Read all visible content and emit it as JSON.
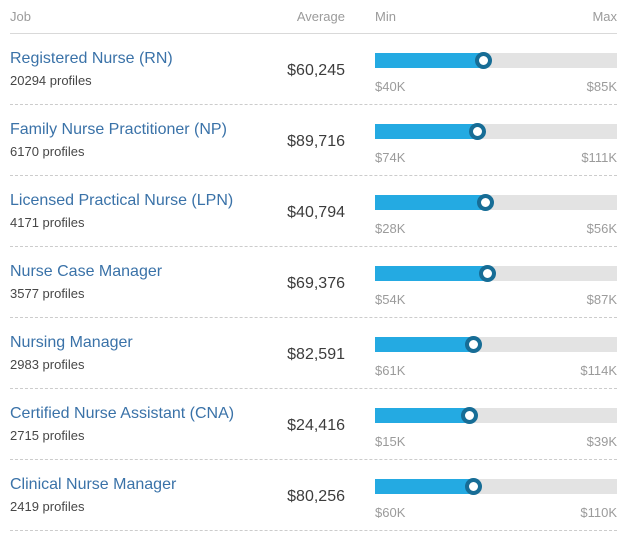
{
  "header": {
    "job": "Job",
    "average": "Average",
    "min": "Min",
    "max": "Max"
  },
  "colors": {
    "bar_fill": "#24aae2",
    "bar_track": "#e3e3e3",
    "handle_ring": "#176d96",
    "title_link": "#3a72a8"
  },
  "rows": [
    {
      "title": "Registered Nurse (RN)",
      "profiles": "20294 profiles",
      "average": "$60,245",
      "average_value": 60245,
      "min_label": "$40K",
      "max_label": "$85K",
      "min_value_k": 40,
      "max_value_k": 85
    },
    {
      "title": "Family Nurse Practitioner (NP)",
      "profiles": "6170 profiles",
      "average": "$89,716",
      "average_value": 89716,
      "min_label": "$74K",
      "max_label": "$111K",
      "min_value_k": 74,
      "max_value_k": 111
    },
    {
      "title": "Licensed Practical Nurse (LPN)",
      "profiles": "4171 profiles",
      "average": "$40,794",
      "average_value": 40794,
      "min_label": "$28K",
      "max_label": "$56K",
      "min_value_k": 28,
      "max_value_k": 56
    },
    {
      "title": "Nurse Case Manager",
      "profiles": "3577 profiles",
      "average": "$69,376",
      "average_value": 69376,
      "min_label": "$54K",
      "max_label": "$87K",
      "min_value_k": 54,
      "max_value_k": 87
    },
    {
      "title": "Nursing Manager",
      "profiles": "2983 profiles",
      "average": "$82,591",
      "average_value": 82591,
      "min_label": "$61K",
      "max_label": "$114K",
      "min_value_k": 61,
      "max_value_k": 114
    },
    {
      "title": "Certified Nurse Assistant (CNA)",
      "profiles": "2715 profiles",
      "average": "$24,416",
      "average_value": 24416,
      "min_label": "$15K",
      "max_label": "$39K",
      "min_value_k": 15,
      "max_value_k": 39
    },
    {
      "title": "Clinical Nurse Manager",
      "profiles": "2419 profiles",
      "average": "$80,256",
      "average_value": 80256,
      "min_label": "$60K",
      "max_label": "$110K",
      "min_value_k": 60,
      "max_value_k": 110
    }
  ]
}
